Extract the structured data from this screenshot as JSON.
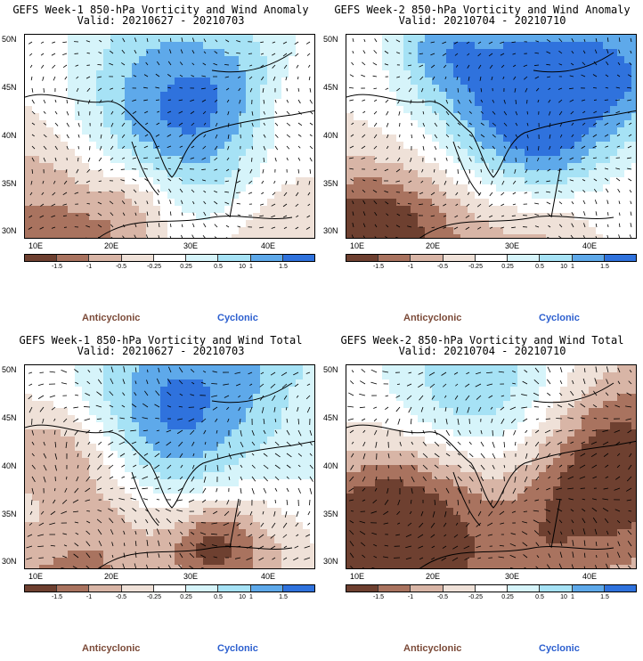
{
  "colors": {
    "anticyclonic_dark": "#6e4030",
    "anticyclonic_mid": "#a9735f",
    "anticyclonic_light": "#d8b5a6",
    "anticyclonic_pale": "#efe1d8",
    "neutral": "#ffffff",
    "cyclonic_pale": "#d6f4fa",
    "cyclonic_light": "#a6e2f5",
    "cyclonic_mid": "#5ea9ea",
    "cyclonic_dark": "#2f72dd",
    "cyclonic_deep": "#1e5fd6"
  },
  "panels": [
    {
      "title": "GEFS Week-1 850-hPa Vorticity and Wind Anomaly",
      "valid": "Valid: 20210627 - 20210703",
      "seed": 11
    },
    {
      "title": "GEFS Week-2 850-hPa Vorticity and Wind Anomaly",
      "valid": "Valid: 20210704 - 20210710",
      "seed": 27
    },
    {
      "title": "GEFS Week-1 850-hPa Vorticity and Wind Total",
      "valid": "Valid: 20210627 - 20210703",
      "seed": 43
    },
    {
      "title": "GEFS Week-2 850-hPa Vorticity and Wind Total",
      "valid": "Valid: 20210704 - 20210710",
      "seed": 59
    }
  ],
  "axes": {
    "lat_labels": [
      "50N",
      "45N",
      "40N",
      "35N",
      "30N"
    ],
    "lon_labels": [
      "10E",
      "20E",
      "30E",
      "40E"
    ]
  },
  "colorbar": {
    "labels": [
      "-1.5",
      "-1",
      "-0.5",
      "-0.25",
      "0.25",
      "0.5",
      "1",
      "1.5"
    ],
    "scale_mark": "10"
  },
  "legend": {
    "anticyclonic": "Anticyclonic",
    "cyclonic": "Cyclonic"
  }
}
